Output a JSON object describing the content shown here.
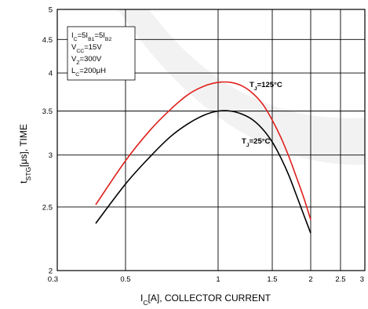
{
  "chart_data": {
    "type": "line",
    "xlabel": "I_C[A], COLLECTOR CURRENT",
    "ylabel": "t_STG[μs], TIME",
    "x_scale": "log",
    "y_scale": "log",
    "xlim": [
      0.3,
      3
    ],
    "ylim": [
      2,
      5
    ],
    "x_ticks": [
      0.3,
      0.5,
      1,
      1.5,
      2,
      2.5,
      3
    ],
    "x_tick_labels": [
      "0.3",
      "0.5",
      "1",
      "1.5",
      "2",
      "2.5",
      "3"
    ],
    "y_ticks": [
      2,
      2.5,
      3,
      3.5,
      4,
      4.5,
      5
    ],
    "y_tick_labels": [
      "2",
      "2.5",
      "3",
      "3.5",
      "4",
      "4.5",
      "5"
    ],
    "grid": true,
    "conditions": [
      "I_C=5I_B1=5I_B2",
      "V_CC=15V",
      "V_Z=300V",
      "L_C=200μH"
    ],
    "series": [
      {
        "name": "T_J=125°C",
        "color": "#e0201c",
        "x": [
          0.4,
          0.5,
          0.6,
          0.7,
          0.8,
          0.9,
          1.0,
          1.1,
          1.2,
          1.3,
          1.4,
          1.5,
          1.6,
          1.7,
          1.8,
          1.9,
          2.0
        ],
        "y": [
          2.52,
          2.94,
          3.27,
          3.52,
          3.71,
          3.82,
          3.87,
          3.87,
          3.82,
          3.72,
          3.58,
          3.39,
          3.19,
          2.98,
          2.77,
          2.58,
          2.39
        ]
      },
      {
        "name": "T_J=25°C",
        "color": "#000000",
        "x": [
          0.4,
          0.5,
          0.6,
          0.7,
          0.8,
          0.9,
          1.0,
          1.1,
          1.2,
          1.3,
          1.4,
          1.5,
          1.6,
          1.7,
          1.8,
          1.9,
          2.0
        ],
        "y": [
          2.36,
          2.71,
          2.98,
          3.2,
          3.35,
          3.45,
          3.5,
          3.5,
          3.46,
          3.39,
          3.28,
          3.14,
          2.97,
          2.79,
          2.6,
          2.43,
          2.28
        ]
      }
    ]
  }
}
